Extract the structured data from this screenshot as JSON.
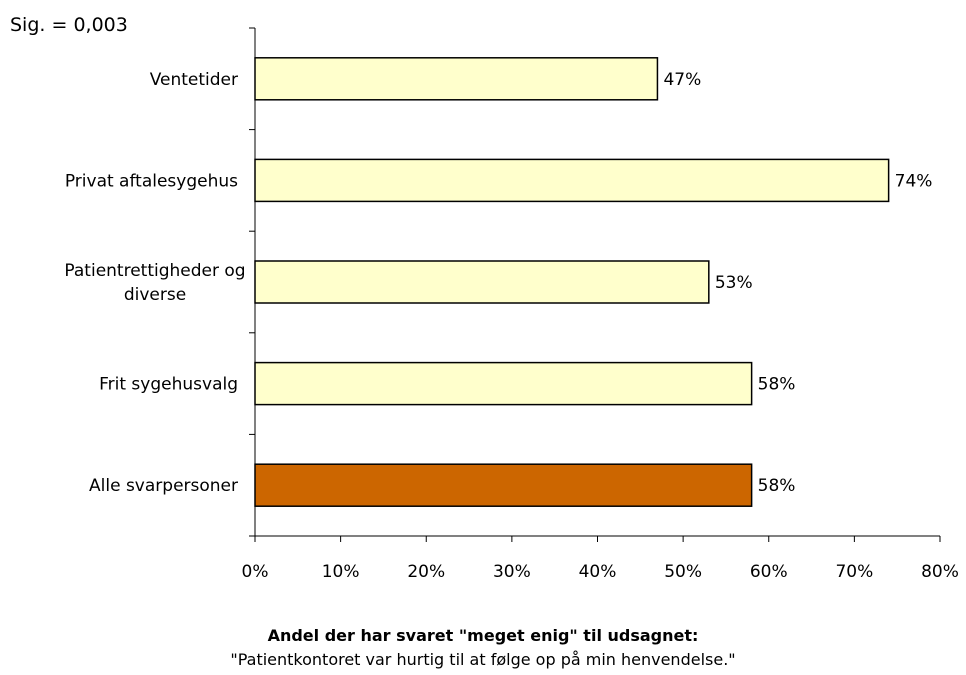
{
  "significance": "Sig. = 0,003",
  "caption": {
    "title": "Andel der har svaret \"meget enig\" til udsagnet:",
    "subtitle": "\"Patientkontoret var hurtig til at følge op på min henvendelse.\""
  },
  "chart_data": {
    "type": "bar",
    "orientation": "horizontal",
    "categories": [
      [
        "Ventetider"
      ],
      [
        "Privat aftalesygehus"
      ],
      [
        "Patientrettigheder og",
        "diverse"
      ],
      [
        "Frit sygehusvalg"
      ],
      [
        "Alle svarpersoner"
      ]
    ],
    "values": [
      47,
      74,
      53,
      58,
      58
    ],
    "value_labels": [
      "47%",
      "74%",
      "53%",
      "58%",
      "58%"
    ],
    "bar_colors": [
      "#ffffcc",
      "#ffffcc",
      "#ffffcc",
      "#ffffcc",
      "#cc6600"
    ],
    "xlim": [
      0,
      80
    ],
    "x_ticks": [
      0,
      10,
      20,
      30,
      40,
      50,
      60,
      70,
      80
    ],
    "x_tick_labels": [
      "0%",
      "10%",
      "20%",
      "30%",
      "40%",
      "50%",
      "60%",
      "70%",
      "80%"
    ],
    "grid": false,
    "legend": "none"
  }
}
